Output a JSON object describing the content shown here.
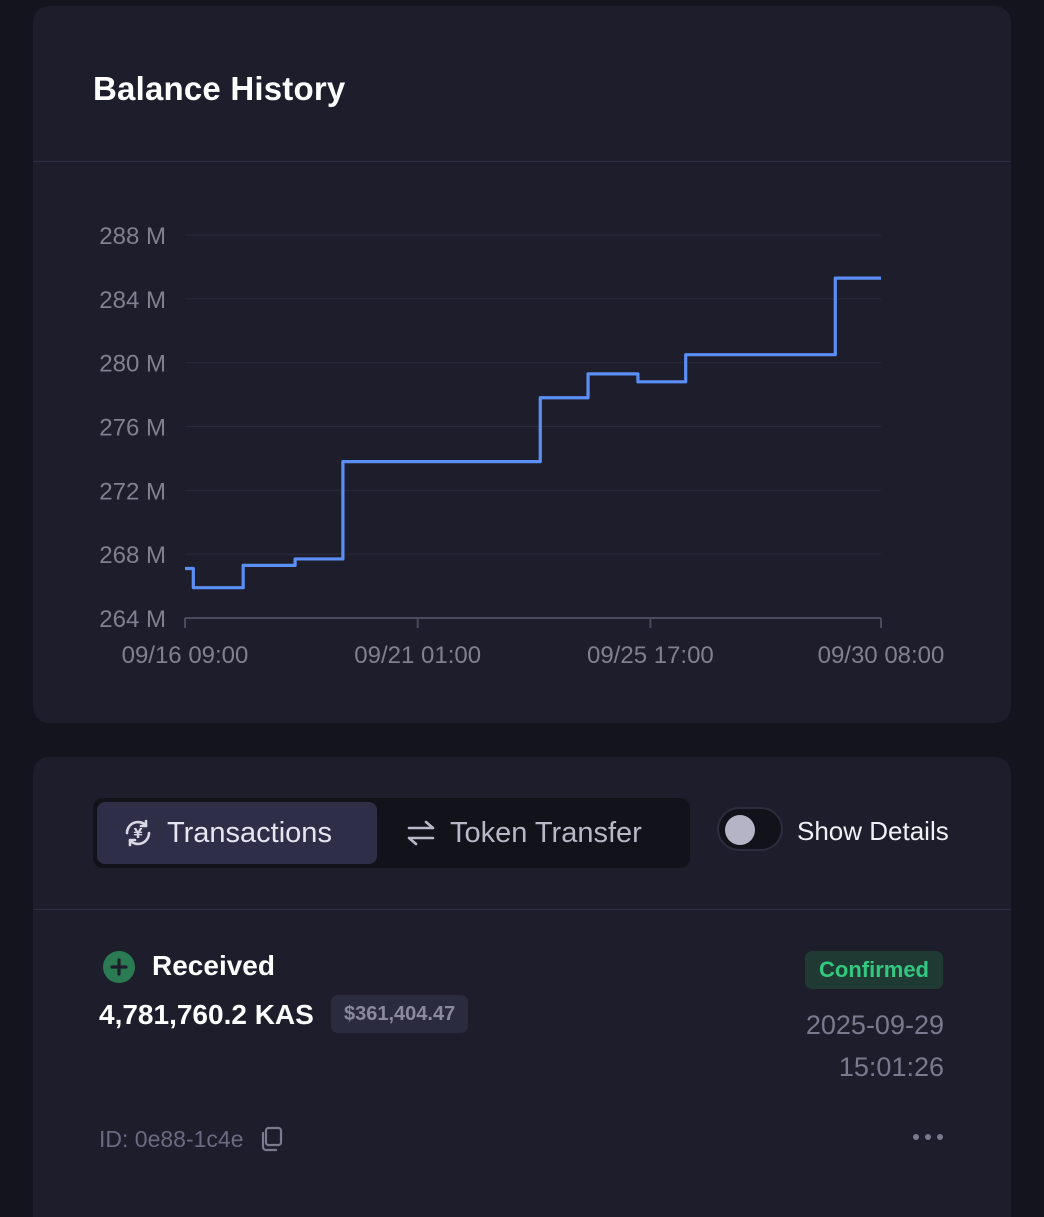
{
  "balance_history": {
    "title": "Balance History"
  },
  "chart_data": {
    "type": "line",
    "step": true,
    "ylim": [
      264,
      288
    ],
    "y_ticks": [
      "288 M",
      "284 M",
      "280 M",
      "276 M",
      "272 M",
      "268 M",
      "264 M"
    ],
    "y_tick_values": [
      288,
      284,
      280,
      276,
      272,
      268,
      264
    ],
    "x_ticks": [
      "09/16 09:00",
      "09/21 01:00",
      "09/25 17:00",
      "09/30 08:00"
    ],
    "x_tick_values": [
      "2025-09-16T09:00",
      "2025-09-21T01:00",
      "2025-09-25T17:00",
      "2025-09-30T08:00"
    ],
    "xlim": [
      "2025-09-16T09:00",
      "2025-09-30T08:00"
    ],
    "grid": true,
    "series": [
      {
        "color": "#5b8ff5",
        "points": [
          [
            "2025-09-16T09:00",
            267.1
          ],
          [
            "2025-09-16T13:00",
            265.9
          ],
          [
            "2025-09-17T13:00",
            267.3
          ],
          [
            "2025-09-18T14:00",
            267.7
          ],
          [
            "2025-09-19T13:00",
            273.8
          ],
          [
            "2025-09-23T12:00",
            277.8
          ],
          [
            "2025-09-24T11:00",
            279.3
          ],
          [
            "2025-09-25T11:00",
            278.8
          ],
          [
            "2025-09-26T10:00",
            280.5
          ],
          [
            "2025-09-29T10:00",
            285.3
          ],
          [
            "2025-09-30T08:00",
            285.3
          ]
        ]
      }
    ]
  },
  "tabs": [
    {
      "label": "Transactions",
      "icon": "currency-exchange-icon",
      "active": true
    },
    {
      "label": "Token Transfer",
      "icon": "swap-arrows-icon",
      "active": false
    }
  ],
  "details_toggle": {
    "label": "Show Details",
    "on": false
  },
  "transaction": {
    "type": "Received",
    "amount": "4,781,760.2 KAS",
    "usd": "$361,404.47",
    "status": "Confirmed",
    "date": "2025-09-29",
    "time": "15:01:26",
    "id": "ID: 0e88-1c4e",
    "colors": {
      "received": "#2a7a52",
      "confirmed": "#33c880"
    }
  }
}
